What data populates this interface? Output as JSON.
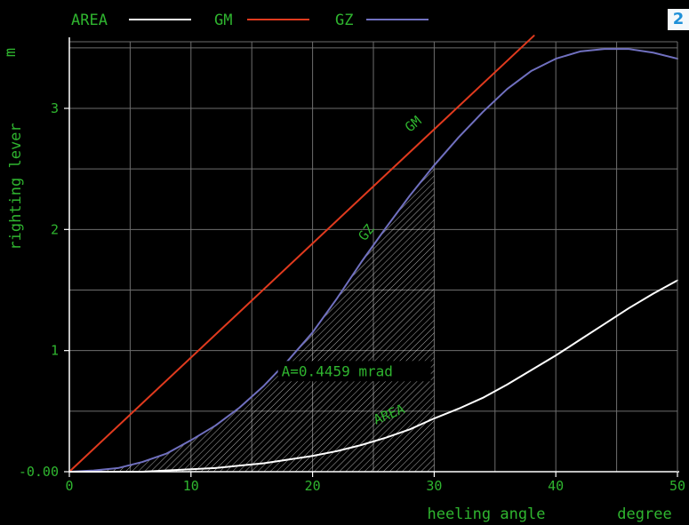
{
  "badge": "2",
  "chart_data": {
    "type": "line",
    "title": "",
    "xlabel": "heeling angle",
    "xunit": "degree",
    "ylabel": "righting lever",
    "yunit": "m",
    "xlim": [
      0,
      50
    ],
    "ylim": [
      0,
      3.55
    ],
    "x_ticks": [
      "0",
      "10",
      "20",
      "30",
      "40",
      "50"
    ],
    "y_ticks": [
      {
        "value": 0,
        "label": "-0.00"
      },
      {
        "value": 1,
        "label": "1"
      },
      {
        "value": 2,
        "label": "2"
      },
      {
        "value": 3,
        "label": "3"
      }
    ],
    "grid": true,
    "legend_position": "top",
    "legend": [
      {
        "label": "AREA",
        "color": "#ffffff"
      },
      {
        "label": "GM",
        "color": "#e03a1e"
      },
      {
        "label": "GZ",
        "color": "#7070c0"
      }
    ],
    "series": [
      {
        "name": "GZ",
        "color": "#7070c0",
        "x": [
          0,
          2,
          4,
          6,
          8,
          10,
          12,
          14,
          16,
          18,
          20,
          22,
          24,
          26,
          28,
          30,
          32,
          34,
          36,
          38,
          40,
          42,
          44,
          46,
          48,
          50
        ],
        "y": [
          0,
          0.01,
          0.03,
          0.08,
          0.15,
          0.26,
          0.38,
          0.53,
          0.71,
          0.92,
          1.15,
          1.43,
          1.73,
          2.01,
          2.28,
          2.53,
          2.76,
          2.97,
          3.16,
          3.31,
          3.41,
          3.47,
          3.49,
          3.49,
          3.46,
          3.41
        ]
      },
      {
        "name": "GM",
        "color": "#e03a1e",
        "x": [
          0,
          38.2
        ],
        "y": [
          0,
          3.6
        ]
      },
      {
        "name": "AREA",
        "color": "#ffffff",
        "x": [
          0,
          2,
          4,
          6,
          8,
          10,
          12,
          14,
          16,
          18,
          20,
          22,
          24,
          26,
          28,
          30,
          32,
          34,
          36,
          38,
          40,
          42,
          44,
          46,
          48,
          50
        ],
        "y": [
          0,
          0,
          0,
          0,
          0.01,
          0.02,
          0.03,
          0.05,
          0.07,
          0.1,
          0.13,
          0.17,
          0.22,
          0.28,
          0.35,
          0.44,
          0.52,
          0.61,
          0.72,
          0.84,
          0.96,
          1.09,
          1.22,
          1.35,
          1.47,
          1.58
        ]
      }
    ],
    "shaded_region": {
      "x_from": 0,
      "x_to": 30,
      "under": "GZ",
      "pattern": "hatched"
    },
    "annotations": [
      {
        "text": "A=0.4459 mrad",
        "x": 17.3,
        "y": 0.79
      },
      {
        "text": "GM",
        "x": 28,
        "y": 2.8,
        "rotate": -40
      },
      {
        "text": "GZ",
        "x": 24.3,
        "y": 1.9,
        "rotate": -52
      },
      {
        "text": "AREA",
        "x": 25.2,
        "y": 0.39,
        "rotate": -22
      }
    ]
  }
}
